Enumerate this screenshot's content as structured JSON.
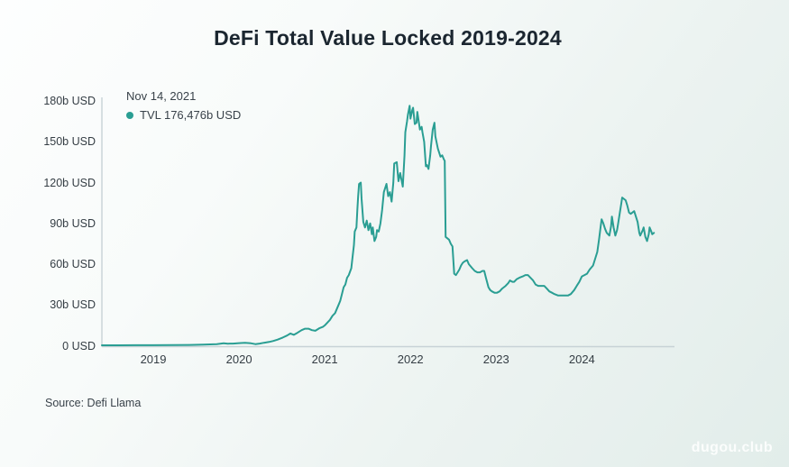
{
  "page": {
    "title": "DeFi Total Value Locked 2019-2024",
    "source": "Source: Defi Llama",
    "watermark": "dugou.club"
  },
  "tooltip": {
    "date": "Nov 14, 2021",
    "value_label": "TVL 176,476b USD",
    "marker_color": "#2a9e93"
  },
  "chart_data": {
    "type": "line",
    "title": "DeFi Total Value Locked 2019-2024",
    "unit": "b USD",
    "xlim": [
      2018.4,
      2025.08
    ],
    "ylim": [
      0,
      180
    ],
    "grid": false,
    "legend_position": "top-left",
    "highlight_point": {
      "date": "Nov 14, 2021",
      "value": 176.476
    },
    "x_ticks": [
      {
        "label": "2019",
        "value": 2019
      },
      {
        "label": "2020",
        "value": 2020
      },
      {
        "label": "2021",
        "value": 2021
      },
      {
        "label": "2022",
        "value": 2022
      },
      {
        "label": "2023",
        "value": 2023
      },
      {
        "label": "2024",
        "value": 2024
      }
    ],
    "y_ticks": [
      {
        "label": "0 USD",
        "value": 0
      },
      {
        "label": "30b USD",
        "value": 30
      },
      {
        "label": "60b USD",
        "value": 60
      },
      {
        "label": "90b USD",
        "value": 90
      },
      {
        "label": "120b USD",
        "value": 120
      },
      {
        "label": "150b USD",
        "value": 150
      },
      {
        "label": "180b USD",
        "value": 180
      }
    ],
    "series": [
      {
        "name": "TVL",
        "color": "#2a9e93",
        "points": [
          [
            2018.4,
            0.3
          ],
          [
            2018.58,
            0.3
          ],
          [
            2018.79,
            0.4
          ],
          [
            2019.0,
            0.4
          ],
          [
            2019.21,
            0.5
          ],
          [
            2019.42,
            0.6
          ],
          [
            2019.58,
            0.8
          ],
          [
            2019.74,
            1.2
          ],
          [
            2019.82,
            1.8
          ],
          [
            2019.87,
            1.5
          ],
          [
            2019.93,
            1.6
          ],
          [
            2020.0,
            1.9
          ],
          [
            2020.07,
            2.1
          ],
          [
            2020.14,
            1.8
          ],
          [
            2020.19,
            1.2
          ],
          [
            2020.24,
            1.6
          ],
          [
            2020.29,
            2.2
          ],
          [
            2020.35,
            2.8
          ],
          [
            2020.4,
            3.5
          ],
          [
            2020.45,
            4.5
          ],
          [
            2020.51,
            6
          ],
          [
            2020.56,
            7.5
          ],
          [
            2020.6,
            9
          ],
          [
            2020.64,
            8
          ],
          [
            2020.68,
            9.5
          ],
          [
            2020.73,
            11.5
          ],
          [
            2020.77,
            12.5
          ],
          [
            2020.81,
            12.5
          ],
          [
            2020.85,
            11.5
          ],
          [
            2020.89,
            11
          ],
          [
            2020.94,
            13
          ],
          [
            2020.98,
            14
          ],
          [
            2021.0,
            15
          ],
          [
            2021.03,
            17
          ],
          [
            2021.06,
            19
          ],
          [
            2021.09,
            22
          ],
          [
            2021.12,
            24
          ],
          [
            2021.14,
            27
          ],
          [
            2021.16,
            30
          ],
          [
            2021.18,
            33
          ],
          [
            2021.2,
            38
          ],
          [
            2021.22,
            43
          ],
          [
            2021.24,
            45
          ],
          [
            2021.26,
            50
          ],
          [
            2021.28,
            52
          ],
          [
            2021.31,
            57
          ],
          [
            2021.32,
            63
          ],
          [
            2021.34,
            74
          ],
          [
            2021.35,
            84
          ],
          [
            2021.37,
            87
          ],
          [
            2021.38,
            100
          ],
          [
            2021.39,
            110
          ],
          [
            2021.4,
            119
          ],
          [
            2021.42,
            120
          ],
          [
            2021.43,
            108
          ],
          [
            2021.45,
            91
          ],
          [
            2021.47,
            87
          ],
          [
            2021.49,
            92
          ],
          [
            2021.51,
            85
          ],
          [
            2021.53,
            90
          ],
          [
            2021.55,
            82
          ],
          [
            2021.56,
            87
          ],
          [
            2021.58,
            77
          ],
          [
            2021.6,
            80
          ],
          [
            2021.61,
            85
          ],
          [
            2021.63,
            84
          ],
          [
            2021.65,
            90
          ],
          [
            2021.67,
            100
          ],
          [
            2021.69,
            113
          ],
          [
            2021.72,
            119
          ],
          [
            2021.74,
            110
          ],
          [
            2021.76,
            113
          ],
          [
            2021.78,
            106
          ],
          [
            2021.8,
            120
          ],
          [
            2021.81,
            134
          ],
          [
            2021.84,
            135
          ],
          [
            2021.86,
            121
          ],
          [
            2021.88,
            127
          ],
          [
            2021.91,
            117
          ],
          [
            2021.93,
            140
          ],
          [
            2021.94,
            157
          ],
          [
            2021.96,
            165
          ],
          [
            2021.97,
            170
          ],
          [
            2021.99,
            176.5
          ],
          [
            2022.0,
            167
          ],
          [
            2022.02,
            173
          ],
          [
            2022.03,
            175
          ],
          [
            2022.05,
            163
          ],
          [
            2022.07,
            164
          ],
          [
            2022.08,
            172
          ],
          [
            2022.11,
            159
          ],
          [
            2022.13,
            161
          ],
          [
            2022.14,
            157
          ],
          [
            2022.16,
            150
          ],
          [
            2022.18,
            132
          ],
          [
            2022.19,
            133
          ],
          [
            2022.21,
            130
          ],
          [
            2022.23,
            140
          ],
          [
            2022.24,
            147
          ],
          [
            2022.26,
            159
          ],
          [
            2022.28,
            164
          ],
          [
            2022.29,
            154
          ],
          [
            2022.32,
            145
          ],
          [
            2022.35,
            139
          ],
          [
            2022.37,
            140
          ],
          [
            2022.39,
            137
          ],
          [
            2022.4,
            136
          ],
          [
            2022.41,
            80
          ],
          [
            2022.43,
            79
          ],
          [
            2022.45,
            78
          ],
          [
            2022.47,
            75
          ],
          [
            2022.49,
            73
          ],
          [
            2022.51,
            53
          ],
          [
            2022.53,
            52
          ],
          [
            2022.55,
            54
          ],
          [
            2022.57,
            56
          ],
          [
            2022.59,
            59
          ],
          [
            2022.61,
            61
          ],
          [
            2022.63,
            62
          ],
          [
            2022.66,
            63
          ],
          [
            2022.68,
            60
          ],
          [
            2022.72,
            57
          ],
          [
            2022.75,
            55
          ],
          [
            2022.78,
            54
          ],
          [
            2022.81,
            54
          ],
          [
            2022.84,
            55
          ],
          [
            2022.86,
            55
          ],
          [
            2022.88,
            50
          ],
          [
            2022.91,
            43
          ],
          [
            2022.93,
            41
          ],
          [
            2022.95,
            40
          ],
          [
            2022.98,
            39
          ],
          [
            2023.01,
            39
          ],
          [
            2023.04,
            40
          ],
          [
            2023.07,
            42
          ],
          [
            2023.11,
            44
          ],
          [
            2023.14,
            46
          ],
          [
            2023.16,
            48
          ],
          [
            2023.19,
            47
          ],
          [
            2023.21,
            47
          ],
          [
            2023.24,
            49
          ],
          [
            2023.27,
            50
          ],
          [
            2023.31,
            51
          ],
          [
            2023.34,
            52
          ],
          [
            2023.37,
            52
          ],
          [
            2023.4,
            50
          ],
          [
            2023.43,
            48
          ],
          [
            2023.46,
            45
          ],
          [
            2023.49,
            44
          ],
          [
            2023.53,
            44
          ],
          [
            2023.56,
            44
          ],
          [
            2023.59,
            42
          ],
          [
            2023.62,
            40
          ],
          [
            2023.65,
            39
          ],
          [
            2023.68,
            38
          ],
          [
            2023.72,
            37
          ],
          [
            2023.75,
            37
          ],
          [
            2023.78,
            37
          ],
          [
            2023.81,
            37
          ],
          [
            2023.84,
            37
          ],
          [
            2023.87,
            38
          ],
          [
            2023.91,
            41
          ],
          [
            2023.94,
            44
          ],
          [
            2023.97,
            47
          ],
          [
            2024.0,
            51
          ],
          [
            2024.03,
            52
          ],
          [
            2024.06,
            53
          ],
          [
            2024.09,
            56
          ],
          [
            2024.13,
            59
          ],
          [
            2024.16,
            65
          ],
          [
            2024.18,
            69
          ],
          [
            2024.2,
            78
          ],
          [
            2024.22,
            88
          ],
          [
            2024.23,
            93
          ],
          [
            2024.25,
            90
          ],
          [
            2024.27,
            86
          ],
          [
            2024.29,
            83
          ],
          [
            2024.32,
            81
          ],
          [
            2024.34,
            88
          ],
          [
            2024.35,
            95
          ],
          [
            2024.37,
            87
          ],
          [
            2024.39,
            81
          ],
          [
            2024.41,
            85
          ],
          [
            2024.42,
            89
          ],
          [
            2024.44,
            97
          ],
          [
            2024.46,
            105
          ],
          [
            2024.47,
            109
          ],
          [
            2024.49,
            108
          ],
          [
            2024.51,
            107
          ],
          [
            2024.53,
            103
          ],
          [
            2024.55,
            98
          ],
          [
            2024.57,
            97
          ],
          [
            2024.59,
            98
          ],
          [
            2024.61,
            99
          ],
          [
            2024.63,
            95
          ],
          [
            2024.65,
            91
          ],
          [
            2024.67,
            83
          ],
          [
            2024.68,
            81
          ],
          [
            2024.71,
            85
          ],
          [
            2024.72,
            87
          ],
          [
            2024.74,
            80
          ],
          [
            2024.76,
            77
          ],
          [
            2024.78,
            82
          ],
          [
            2024.79,
            87
          ],
          [
            2024.81,
            84
          ],
          [
            2024.82,
            82
          ],
          [
            2024.84,
            83
          ]
        ]
      }
    ]
  }
}
